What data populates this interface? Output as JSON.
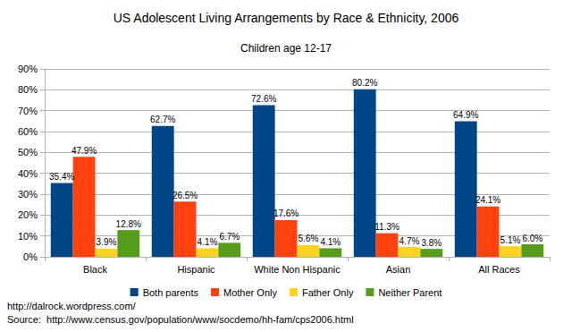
{
  "chart_data": {
    "type": "bar",
    "title": "US Adolescent Living Arrangements by Race & Ethnicity, 2006",
    "subtitle": "Children age 12-17",
    "annotations": [
      "http://dalrock.wordpress.com/",
      "Source:  http://www.census.gov/population/www/socdemo/hh-fam/cps2006.html"
    ],
    "categories": [
      "Black",
      "Hispanic",
      "White Non Hispanic",
      "Asian",
      "All Races"
    ],
    "series": [
      {
        "name": "Both parents",
        "color": "#004586",
        "values": [
          35.4,
          62.7,
          72.6,
          80.2,
          64.9
        ],
        "value_labels": [
          "35.4%",
          "62.7%",
          "72.6%",
          "80.2%",
          "64.9%"
        ]
      },
      {
        "name": "Mother Only",
        "color": "#ff420e",
        "values": [
          47.9,
          26.5,
          17.6,
          11.3,
          24.1
        ],
        "value_labels": [
          "47.9%",
          "26.5%",
          "17.6%",
          "11.3%",
          "24.1%"
        ]
      },
      {
        "name": "Father Only",
        "color": "#ffd320",
        "values": [
          3.9,
          4.1,
          5.6,
          4.7,
          5.1
        ],
        "value_labels": [
          "3.9%",
          "4.1%",
          "5.6%",
          "4.7%",
          "5.1%"
        ]
      },
      {
        "name": "Neither Parent",
        "color": "#579d1c",
        "values": [
          12.8,
          6.7,
          4.1,
          3.8,
          6.0
        ],
        "value_labels": [
          "12.8%",
          "6.7%",
          "4.1%",
          "3.8%",
          "6.0%"
        ]
      }
    ],
    "ylim": [
      0,
      90
    ],
    "yticks": [
      {
        "value": 0,
        "label": "0%"
      },
      {
        "value": 10,
        "label": "10%"
      },
      {
        "value": 20,
        "label": "20%"
      },
      {
        "value": 30,
        "label": "30%"
      },
      {
        "value": 40,
        "label": "40%"
      },
      {
        "value": 50,
        "label": "50%"
      },
      {
        "value": 60,
        "label": "60%"
      },
      {
        "value": 70,
        "label": "70%"
      },
      {
        "value": 80,
        "label": "80%"
      },
      {
        "value": 90,
        "label": "90%"
      }
    ],
    "grid": true,
    "legend": "bottom",
    "data_labels": true
  }
}
